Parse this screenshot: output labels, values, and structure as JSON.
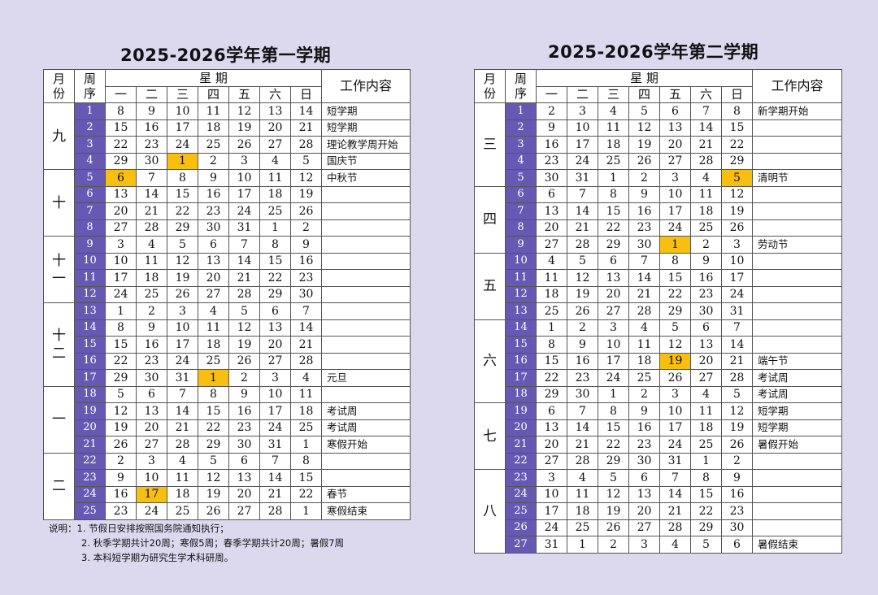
{
  "weekdays": [
    "一",
    "二",
    "三",
    "四",
    "五",
    "六",
    "日"
  ],
  "headers": {
    "month": "月份",
    "week": "周序",
    "weekday": "星 期",
    "work": "工作内容"
  },
  "calendars": [
    {
      "title": "2025-2026学年第一学期",
      "months": [
        {
          "name": "九",
          "rows": 4
        },
        {
          "name": "十",
          "rows": 4
        },
        {
          "name": "十一",
          "rows": 4
        },
        {
          "name": "十二",
          "rows": 5
        },
        {
          "name": "一",
          "rows": 4
        },
        {
          "name": "二",
          "rows": 4
        }
      ],
      "weeks": [
        {
          "no": "1",
          "days": [
            "8",
            "9",
            "10",
            "11",
            "12",
            "13",
            "14"
          ],
          "work": "短学期"
        },
        {
          "no": "2",
          "days": [
            "15",
            "16",
            "17",
            "18",
            "19",
            "20",
            "21"
          ],
          "work": "短学期"
        },
        {
          "no": "3",
          "days": [
            "22",
            "23",
            "24",
            "25",
            "26",
            "27",
            "28"
          ],
          "work": "理论教学周开始"
        },
        {
          "no": "4",
          "days": [
            "29",
            "30",
            "1",
            "2",
            "3",
            "4",
            "5"
          ],
          "work": "国庆节",
          "hl": 2
        },
        {
          "no": "5",
          "days": [
            "6",
            "7",
            "8",
            "9",
            "10",
            "11",
            "12"
          ],
          "work": "中秋节",
          "hl": 0
        },
        {
          "no": "6",
          "days": [
            "13",
            "14",
            "15",
            "16",
            "17",
            "18",
            "19"
          ],
          "work": ""
        },
        {
          "no": "7",
          "days": [
            "20",
            "21",
            "22",
            "23",
            "24",
            "25",
            "26"
          ],
          "work": ""
        },
        {
          "no": "8",
          "days": [
            "27",
            "28",
            "29",
            "30",
            "31",
            "1",
            "2"
          ],
          "work": ""
        },
        {
          "no": "9",
          "days": [
            "3",
            "4",
            "5",
            "6",
            "7",
            "8",
            "9"
          ],
          "work": ""
        },
        {
          "no": "10",
          "days": [
            "10",
            "11",
            "12",
            "13",
            "14",
            "15",
            "16"
          ],
          "work": ""
        },
        {
          "no": "11",
          "days": [
            "17",
            "18",
            "19",
            "20",
            "21",
            "22",
            "23"
          ],
          "work": ""
        },
        {
          "no": "12",
          "days": [
            "24",
            "25",
            "26",
            "27",
            "28",
            "29",
            "30"
          ],
          "work": ""
        },
        {
          "no": "13",
          "days": [
            "1",
            "2",
            "3",
            "4",
            "5",
            "6",
            "7"
          ],
          "work": ""
        },
        {
          "no": "14",
          "days": [
            "8",
            "9",
            "10",
            "11",
            "12",
            "13",
            "14"
          ],
          "work": ""
        },
        {
          "no": "15",
          "days": [
            "15",
            "16",
            "17",
            "18",
            "19",
            "20",
            "21"
          ],
          "work": ""
        },
        {
          "no": "16",
          "days": [
            "22",
            "23",
            "24",
            "25",
            "26",
            "27",
            "28"
          ],
          "work": ""
        },
        {
          "no": "17",
          "days": [
            "29",
            "30",
            "31",
            "1",
            "2",
            "3",
            "4"
          ],
          "work": "元旦",
          "hl": 3
        },
        {
          "no": "18",
          "days": [
            "5",
            "6",
            "7",
            "8",
            "9",
            "10",
            "11"
          ],
          "work": ""
        },
        {
          "no": "19",
          "days": [
            "12",
            "13",
            "14",
            "15",
            "16",
            "17",
            "18"
          ],
          "work": "考试周"
        },
        {
          "no": "20",
          "days": [
            "19",
            "20",
            "21",
            "22",
            "23",
            "24",
            "25"
          ],
          "work": "考试周"
        },
        {
          "no": "21",
          "days": [
            "26",
            "27",
            "28",
            "29",
            "30",
            "31",
            "1"
          ],
          "work": "寒假开始"
        },
        {
          "no": "22",
          "days": [
            "2",
            "3",
            "4",
            "5",
            "6",
            "7",
            "8"
          ],
          "work": ""
        },
        {
          "no": "23",
          "days": [
            "9",
            "10",
            "11",
            "12",
            "13",
            "14",
            "15"
          ],
          "work": ""
        },
        {
          "no": "24",
          "days": [
            "16",
            "17",
            "18",
            "19",
            "20",
            "21",
            "22"
          ],
          "work": "春节",
          "hl": 1
        },
        {
          "no": "25",
          "days": [
            "23",
            "24",
            "25",
            "26",
            "27",
            "28",
            "1"
          ],
          "work": "寒假结束"
        }
      ]
    },
    {
      "title": "2025-2026学年第二学期",
      "months": [
        {
          "name": "三",
          "rows": 5
        },
        {
          "name": "四",
          "rows": 4
        },
        {
          "name": "五",
          "rows": 4
        },
        {
          "name": "六",
          "rows": 5
        },
        {
          "name": "七",
          "rows": 4
        },
        {
          "name": "八",
          "rows": 5
        }
      ],
      "weeks": [
        {
          "no": "1",
          "days": [
            "2",
            "3",
            "4",
            "5",
            "6",
            "7",
            "8"
          ],
          "work": "新学期开始"
        },
        {
          "no": "2",
          "days": [
            "9",
            "10",
            "11",
            "12",
            "13",
            "14",
            "15"
          ],
          "work": ""
        },
        {
          "no": "3",
          "days": [
            "16",
            "17",
            "18",
            "19",
            "20",
            "21",
            "22"
          ],
          "work": ""
        },
        {
          "no": "4",
          "days": [
            "23",
            "24",
            "25",
            "26",
            "27",
            "28",
            "29"
          ],
          "work": ""
        },
        {
          "no": "5",
          "days": [
            "30",
            "31",
            "1",
            "2",
            "3",
            "4",
            "5"
          ],
          "work": "清明节",
          "hl": 6
        },
        {
          "no": "6",
          "days": [
            "6",
            "7",
            "8",
            "9",
            "10",
            "11",
            "12"
          ],
          "work": ""
        },
        {
          "no": "7",
          "days": [
            "13",
            "14",
            "15",
            "16",
            "17",
            "18",
            "19"
          ],
          "work": ""
        },
        {
          "no": "8",
          "days": [
            "20",
            "21",
            "22",
            "23",
            "24",
            "25",
            "26"
          ],
          "work": ""
        },
        {
          "no": "9",
          "days": [
            "27",
            "28",
            "29",
            "30",
            "1",
            "2",
            "3"
          ],
          "work": "劳动节",
          "hl": 4
        },
        {
          "no": "10",
          "days": [
            "4",
            "5",
            "6",
            "7",
            "8",
            "9",
            "10"
          ],
          "work": ""
        },
        {
          "no": "11",
          "days": [
            "11",
            "12",
            "13",
            "14",
            "15",
            "16",
            "17"
          ],
          "work": ""
        },
        {
          "no": "12",
          "days": [
            "18",
            "19",
            "20",
            "21",
            "22",
            "23",
            "24"
          ],
          "work": ""
        },
        {
          "no": "13",
          "days": [
            "25",
            "26",
            "27",
            "28",
            "29",
            "30",
            "31"
          ],
          "work": ""
        },
        {
          "no": "14",
          "days": [
            "1",
            "2",
            "3",
            "4",
            "5",
            "6",
            "7"
          ],
          "work": ""
        },
        {
          "no": "15",
          "days": [
            "8",
            "9",
            "10",
            "11",
            "12",
            "13",
            "14"
          ],
          "work": ""
        },
        {
          "no": "16",
          "days": [
            "15",
            "16",
            "17",
            "18",
            "19",
            "20",
            "21"
          ],
          "work": "端午节",
          "hl": 4
        },
        {
          "no": "17",
          "days": [
            "22",
            "23",
            "24",
            "25",
            "26",
            "27",
            "28"
          ],
          "work": "考试周"
        },
        {
          "no": "18",
          "days": [
            "29",
            "30",
            "1",
            "2",
            "3",
            "4",
            "5"
          ],
          "work": "考试周"
        },
        {
          "no": "19",
          "days": [
            "6",
            "7",
            "8",
            "9",
            "10",
            "11",
            "12"
          ],
          "work": "短学期"
        },
        {
          "no": "20",
          "days": [
            "13",
            "14",
            "15",
            "16",
            "17",
            "18",
            "19"
          ],
          "work": "短学期"
        },
        {
          "no": "21",
          "days": [
            "20",
            "21",
            "22",
            "23",
            "24",
            "25",
            "26"
          ],
          "work": "暑假开始"
        },
        {
          "no": "22",
          "days": [
            "27",
            "28",
            "29",
            "30",
            "31",
            "1",
            "2"
          ],
          "work": ""
        },
        {
          "no": "23",
          "days": [
            "3",
            "4",
            "5",
            "6",
            "7",
            "8",
            "9"
          ],
          "work": ""
        },
        {
          "no": "24",
          "days": [
            "10",
            "11",
            "12",
            "13",
            "14",
            "15",
            "16"
          ],
          "work": ""
        },
        {
          "no": "25",
          "days": [
            "17",
            "18",
            "19",
            "20",
            "21",
            "22",
            "23"
          ],
          "work": ""
        },
        {
          "no": "26",
          "days": [
            "24",
            "25",
            "26",
            "27",
            "28",
            "29",
            "30"
          ],
          "work": ""
        },
        {
          "no": "27",
          "days": [
            "31",
            "1",
            "2",
            "3",
            "4",
            "5",
            "6"
          ],
          "work": "暑假结束"
        }
      ]
    }
  ],
  "notes": {
    "label": "说明：",
    "items": [
      "1. 节假日安排按照国务院通知执行；",
      "2. 秋季学期共计20周；寒假5周；春季学期共计20周；暑假7周",
      "3. 本科短学期为研究生学术科研周。"
    ]
  },
  "colors": {
    "background": "#dcd9ef",
    "week_cell": "#6659b4",
    "holiday": "#f9bf10"
  }
}
